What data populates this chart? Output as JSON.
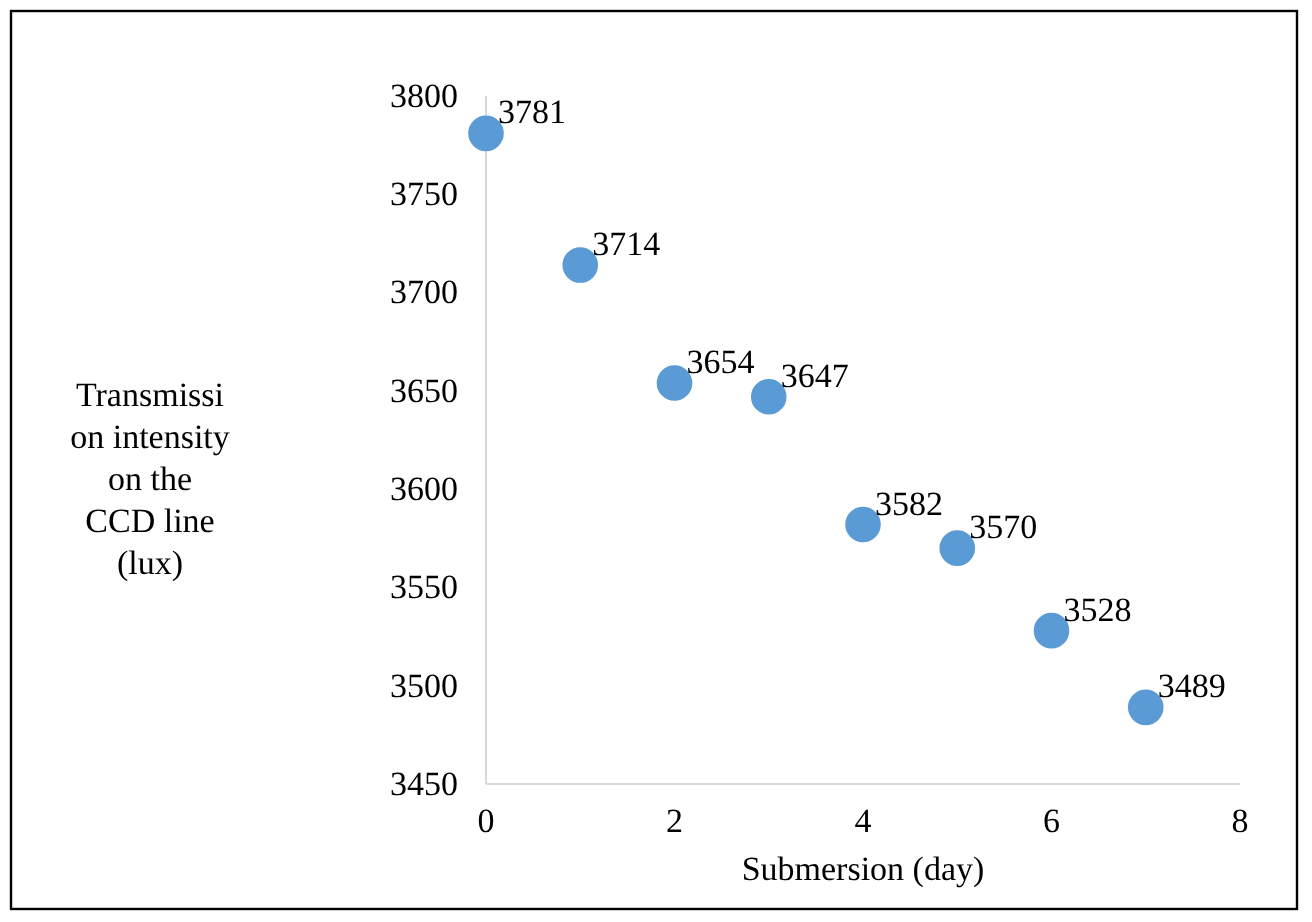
{
  "chart_data": {
    "type": "scatter",
    "xlabel": "Submersion (day)",
    "ylabel": "Transmission intensity on the CCD line (lux)",
    "x": [
      0,
      1,
      2,
      3,
      4,
      5,
      6,
      7
    ],
    "series": [
      {
        "color": "#5b9bd5",
        "values": [
          3781,
          3714,
          3654,
          3647,
          3582,
          3570,
          3528,
          3489
        ]
      }
    ],
    "xlim": [
      0,
      8
    ],
    "xticks": [
      0,
      2,
      4,
      6,
      8
    ],
    "ylim": [
      3450,
      3800
    ],
    "yticks": [
      3450,
      3500,
      3550,
      3600,
      3650,
      3700,
      3750,
      3800
    ],
    "data_labels": true,
    "marker": "circle",
    "grid": false
  }
}
